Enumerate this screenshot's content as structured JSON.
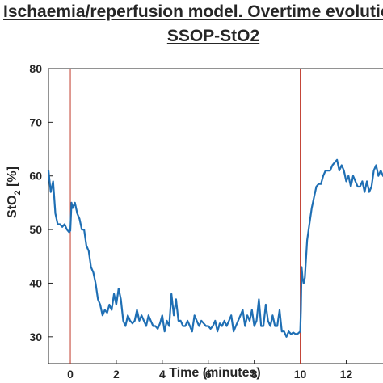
{
  "titles": {
    "line1": "Ischaemia/reperfusion model.  Overtime evolutio",
    "line2": "SSOP-StO2"
  },
  "chart_data": {
    "type": "line",
    "title": "Ischaemia/reperfusion model.  Overtime evolutio SSOP-StO2",
    "xlabel": "Time (minutes)",
    "ylabel_main": "StO",
    "ylabel_sub": "2",
    "ylabel_unit": " [%]",
    "xlim": [
      -0.95,
      13.6
    ],
    "ylim": [
      25,
      80
    ],
    "xticks": [
      0,
      2,
      4,
      6,
      8,
      10,
      12
    ],
    "yticks": [
      30,
      40,
      50,
      60,
      70,
      80
    ],
    "grid": false,
    "line_color": "#1f6fb4",
    "marker_color": "#c0392b",
    "vertical_markers": [
      0,
      10
    ],
    "series": [
      {
        "x": [
          -0.95,
          -0.85,
          -0.75,
          -0.65,
          -0.55,
          -0.45,
          -0.35,
          -0.25,
          -0.15,
          -0.05,
          0.0,
          0.05,
          0.1,
          0.2,
          0.3,
          0.4,
          0.5,
          0.6,
          0.7,
          0.8,
          0.9,
          1.0,
          1.1,
          1.2,
          1.3,
          1.4,
          1.5,
          1.6,
          1.7,
          1.8,
          1.9,
          2.0,
          2.1,
          2.2,
          2.3,
          2.4,
          2.5,
          2.6,
          2.7,
          2.8,
          2.9,
          3.0,
          3.1,
          3.2,
          3.3,
          3.4,
          3.5,
          3.6,
          3.7,
          3.8,
          3.9,
          4.0,
          4.1,
          4.2,
          4.3,
          4.4,
          4.5,
          4.6,
          4.7,
          4.8,
          4.9,
          5.0,
          5.1,
          5.2,
          5.3,
          5.4,
          5.5,
          5.6,
          5.7,
          5.8,
          5.9,
          6.0,
          6.1,
          6.2,
          6.3,
          6.4,
          6.5,
          6.6,
          6.7,
          6.8,
          6.9,
          7.0,
          7.1,
          7.2,
          7.3,
          7.4,
          7.5,
          7.6,
          7.7,
          7.8,
          7.9,
          8.0,
          8.1,
          8.2,
          8.3,
          8.4,
          8.5,
          8.6,
          8.7,
          8.8,
          8.9,
          9.0,
          9.1,
          9.2,
          9.3,
          9.4,
          9.5,
          9.6,
          9.7,
          9.8,
          9.9,
          10.0,
          10.03,
          10.06,
          10.1,
          10.15,
          10.2,
          10.3,
          10.4,
          10.5,
          10.6,
          10.7,
          10.8,
          10.9,
          11.0,
          11.1,
          11.2,
          11.3,
          11.4,
          11.5,
          11.6,
          11.7,
          11.8,
          11.9,
          12.0,
          12.1,
          12.2,
          12.3,
          12.4,
          12.5,
          12.6,
          12.7,
          12.8,
          12.9,
          13.0,
          13.1,
          13.2,
          13.3,
          13.4,
          13.5,
          13.6
        ],
        "y": [
          61,
          57,
          59,
          53,
          51,
          51,
          50.5,
          51,
          50,
          49.5,
          49.8,
          55,
          54,
          55,
          53,
          52,
          50,
          50,
          47,
          46,
          43,
          42,
          40,
          37,
          36,
          34,
          35,
          34.5,
          36,
          35,
          38,
          36,
          39,
          37,
          33,
          32,
          34,
          33,
          32.5,
          33,
          35,
          33,
          34,
          33,
          32,
          34,
          33,
          32,
          32,
          31.5,
          32.5,
          34,
          31,
          33,
          32,
          38,
          34,
          37,
          33,
          33,
          32,
          32,
          33,
          32,
          31,
          34,
          33,
          32,
          33,
          32.5,
          32,
          32,
          31.5,
          32,
          33,
          31,
          32.5,
          32,
          33,
          32,
          33,
          34,
          31,
          32,
          33,
          34,
          35,
          32,
          34,
          33,
          35,
          32,
          33,
          37,
          32,
          32,
          36,
          33,
          32,
          34,
          32,
          32,
          35,
          31,
          31,
          30,
          31,
          30.5,
          30.8,
          30.5,
          30.6,
          31,
          35,
          43,
          41,
          40,
          41,
          48,
          51,
          54,
          56,
          58,
          58.5,
          58.5,
          60,
          61,
          61,
          61,
          62,
          62.5,
          63,
          61,
          62,
          61,
          59,
          60,
          58,
          60,
          59,
          58,
          58,
          59,
          57,
          59,
          57,
          58,
          61,
          62,
          60,
          61,
          60
        ]
      }
    ]
  }
}
